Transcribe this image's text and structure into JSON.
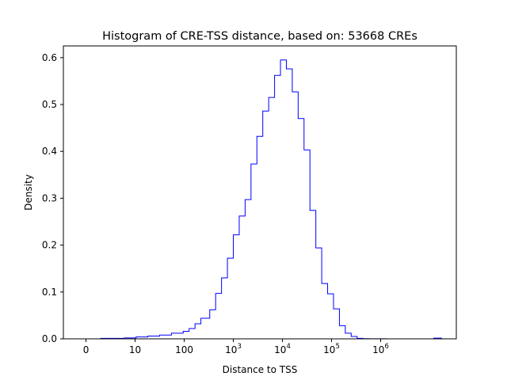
{
  "chart_data": {
    "type": "histogram",
    "title": "Histogram of CRE-TSS distance, based on: 53668 CREs",
    "xlabel": "Distance to TSS",
    "ylabel": "Density",
    "x_scale": "log10(distance + 1)",
    "xlim": [
      -0.46,
      7.54
    ],
    "ylim": [
      0,
      0.625
    ],
    "x_ticks": [
      {
        "value": 0,
        "label": "0"
      },
      {
        "value": 1,
        "label": "10"
      },
      {
        "value": 2,
        "label": "100"
      },
      {
        "value": 3,
        "base": "10",
        "exp": "3"
      },
      {
        "value": 4,
        "base": "10",
        "exp": "4"
      },
      {
        "value": 5,
        "base": "10",
        "exp": "5"
      },
      {
        "value": 6,
        "base": "10",
        "exp": "6"
      }
    ],
    "y_ticks": [
      0.0,
      0.1,
      0.2,
      0.3,
      0.4,
      0.5,
      0.6
    ],
    "y_tick_labels": [
      "0.0",
      "0.1",
      "0.2",
      "0.3",
      "0.4",
      "0.5",
      "0.6"
    ],
    "color": "#0000ff",
    "bin_edges": [
      0.3,
      0.54,
      0.78,
      1.02,
      1.26,
      1.5,
      1.74,
      1.98,
      2.1,
      2.22,
      2.34,
      2.52,
      2.64,
      2.76,
      2.88,
      3.0,
      3.12,
      3.24,
      3.36,
      3.48,
      3.6,
      3.72,
      3.84,
      3.96,
      4.08,
      4.2,
      4.32,
      4.44,
      4.56,
      4.68,
      4.8,
      4.92,
      5.04,
      5.16,
      5.28,
      5.4,
      5.52,
      5.64,
      5.76,
      5.88,
      6.0,
      6.12,
      6.24,
      6.36,
      6.48,
      6.6,
      6.72,
      6.84,
      6.96,
      7.08,
      7.2,
      7.24
    ],
    "densities": [
      0.001,
      0.001,
      0.002,
      0.004,
      0.006,
      0.008,
      0.012,
      0.016,
      0.022,
      0.032,
      0.044,
      0.062,
      0.097,
      0.13,
      0.172,
      0.222,
      0.262,
      0.297,
      0.373,
      0.432,
      0.486,
      0.515,
      0.562,
      0.595,
      0.576,
      0.527,
      0.47,
      0.403,
      0.274,
      0.194,
      0.118,
      0.096,
      0.064,
      0.028,
      0.012,
      0.005,
      0.001,
      0.0005,
      0.0003,
      0.0002,
      0.0002,
      0.0001,
      0.0001,
      0.0001,
      0.0001,
      0.0001,
      0.0001,
      0.0001,
      0.0001,
      0.0015,
      0.0015
    ]
  }
}
